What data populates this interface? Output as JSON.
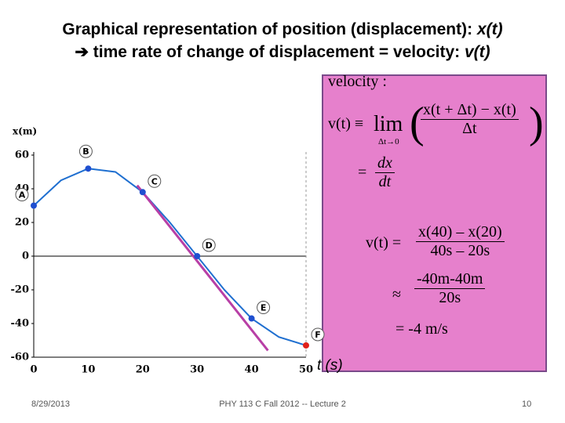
{
  "slide": {
    "title_line1": "Graphical representation of position (displacement): ",
    "title_line1_var": "x(t)",
    "title_line2": "time rate of change of displacement = velocity: ",
    "title_line2_var": "v(t)"
  },
  "chart_data": {
    "type": "line",
    "ylabel": "x(m)",
    "xlabel": "t (s)",
    "xlim": [
      0,
      50
    ],
    "xticks": [
      0,
      10,
      20,
      30,
      40,
      50
    ],
    "ylim": [
      -60,
      60
    ],
    "yticks": [
      -60,
      -40,
      -20,
      0,
      20,
      40,
      60
    ],
    "series": [
      {
        "color": "#1f6fd0",
        "x": [
          0,
          5,
          10,
          15,
          20,
          25,
          30,
          35,
          40,
          45,
          50
        ],
        "values": [
          30,
          45,
          52,
          50,
          38,
          20,
          0,
          -20,
          -37,
          -48,
          -53
        ]
      }
    ],
    "points": {
      "labels": [
        "A",
        "B",
        "C",
        "D",
        "E",
        "F"
      ],
      "x": [
        0,
        10,
        20,
        30,
        40,
        50
      ],
      "values": [
        30,
        52,
        38,
        0,
        -37,
        -53
      ],
      "colors": [
        "#1f4fd0",
        "#1f4fd0",
        "#1f4fd0",
        "#1f4fd0",
        "#1f4fd0",
        "#e0201a"
      ]
    },
    "secant": {
      "color": "#b83fa6",
      "x": [
        19,
        43
      ],
      "values": [
        42,
        -56
      ]
    }
  },
  "formulas": {
    "heading": "velocity :",
    "def_lhs": "v(t) ≡",
    "lim": "lim",
    "lim_sub": "Δt→0",
    "def_num": "x(t + Δt) − x(t)",
    "def_den": "Δt",
    "deriv_eq": "=",
    "deriv_num": "dx",
    "deriv_den": "dt",
    "est_lhs": "v(t) =",
    "est_num": "x(40) – x(20)",
    "est_den": "40s – 20s",
    "approx": "≈",
    "approx_num": "-40m-40m",
    "approx_den": "20s",
    "result": "= -4 m/s"
  },
  "footer": {
    "date": "8/29/2013",
    "course": "PHY 113 C  Fall 2012 -- Lecture 2",
    "page": "10"
  }
}
